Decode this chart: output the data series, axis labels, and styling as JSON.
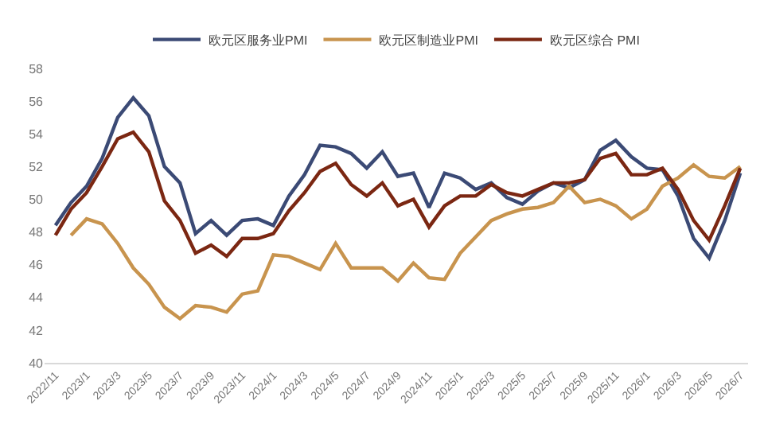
{
  "chart_data": {
    "type": "line",
    "categories": [
      "2022/11",
      null,
      "2023/1",
      null,
      "2023/3",
      null,
      "2023/5",
      null,
      "2023/7",
      null,
      "2023/9",
      null,
      "2023/11",
      null,
      "2024/1",
      null,
      "2024/3",
      null,
      "2024/5",
      null,
      "2024/7",
      null,
      "2024/9",
      null,
      "2024/11",
      null,
      "2025/1",
      null,
      "2025/3",
      null,
      "2025/5",
      null,
      "2025/7",
      null,
      "2025/9",
      null,
      "2025/11",
      null,
      "2026/1",
      null,
      "2026/3",
      null,
      "2026/5",
      null,
      "2026/7"
    ],
    "series": [
      {
        "name": "欧元区服务业PMI",
        "color": "#3b4a75",
        "values": [
          48.4,
          49.8,
          50.8,
          52.5,
          55.0,
          56.2,
          55.1,
          52.0,
          51.0,
          47.9,
          48.7,
          47.8,
          48.7,
          48.8,
          48.4,
          50.2,
          51.5,
          53.3,
          53.2,
          52.8,
          51.9,
          52.9,
          51.4,
          51.6,
          49.5,
          51.6,
          51.3,
          50.6,
          51.0,
          50.1,
          49.7,
          50.5,
          51.0,
          50.7,
          51.2,
          53.0,
          53.6,
          52.6,
          51.9,
          51.8,
          50.2,
          47.6,
          46.4,
          48.7,
          51.6
        ]
      },
      {
        "name": "欧元区制造业PMI",
        "color": "#c8944e",
        "values": [
          null,
          47.8,
          48.8,
          48.5,
          47.3,
          45.8,
          44.8,
          43.4,
          42.7,
          43.5,
          43.4,
          43.1,
          44.2,
          44.4,
          46.6,
          46.5,
          46.1,
          45.7,
          47.3,
          45.8,
          45.8,
          45.8,
          45.0,
          46.1,
          45.2,
          45.1,
          46.7,
          47.7,
          48.7,
          49.1,
          49.4,
          49.5,
          49.8,
          50.8,
          49.8,
          50.0,
          49.6,
          48.8,
          49.4,
          50.8,
          51.3,
          52.1,
          51.4,
          51.3,
          52.0
        ]
      },
      {
        "name": "欧元区综合 PMI",
        "color": "#7b2712",
        "values": [
          47.8,
          49.4,
          50.4,
          52.0,
          53.7,
          54.1,
          52.9,
          49.9,
          48.7,
          46.7,
          47.2,
          46.5,
          47.6,
          47.6,
          47.9,
          49.3,
          50.4,
          51.7,
          52.2,
          50.9,
          50.2,
          51.0,
          49.6,
          50.0,
          48.3,
          49.6,
          50.2,
          50.2,
          50.9,
          50.4,
          50.2,
          50.6,
          51.0,
          51.0,
          51.2,
          52.5,
          52.8,
          51.5,
          51.5,
          51.9,
          50.6,
          48.7,
          47.5,
          49.6,
          51.9
        ]
      }
    ],
    "ylim": [
      40,
      58
    ],
    "yticks": [
      40,
      42,
      44,
      46,
      48,
      50,
      52,
      54,
      56,
      58
    ],
    "grid": false,
    "legend": "top",
    "marker": "none",
    "line_style": "solid"
  }
}
